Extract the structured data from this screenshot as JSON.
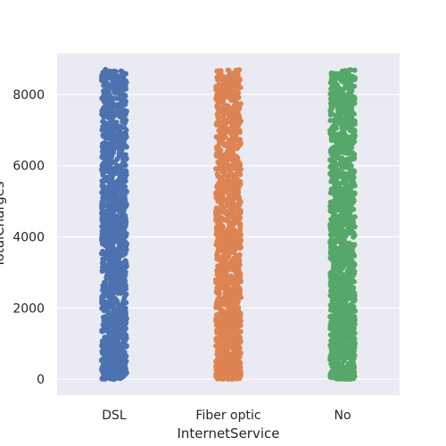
{
  "chart_data": {
    "type": "scatter",
    "subtype": "stripplot",
    "title": "",
    "xlabel": "InternetService",
    "ylabel": "TotalCharges",
    "categories": [
      "DSL",
      "Fiber optic",
      "No"
    ],
    "ylim": [
      -450,
      9150
    ],
    "yticks": [
      0,
      2000,
      4000,
      6000,
      8000
    ],
    "grid": true,
    "legend": "none",
    "series": [
      {
        "category": "DSL",
        "color": "#4c72b0",
        "y_min": 0,
        "y_max": 8700
      },
      {
        "category": "Fiber optic",
        "color": "#dd8452",
        "y_min": 0,
        "y_max": 8700
      },
      {
        "category": "No",
        "color": "#55a868",
        "y_min": 0,
        "y_max": 8700
      }
    ],
    "background_color": "#eaeaf2",
    "grid_color": "#ffffff"
  }
}
